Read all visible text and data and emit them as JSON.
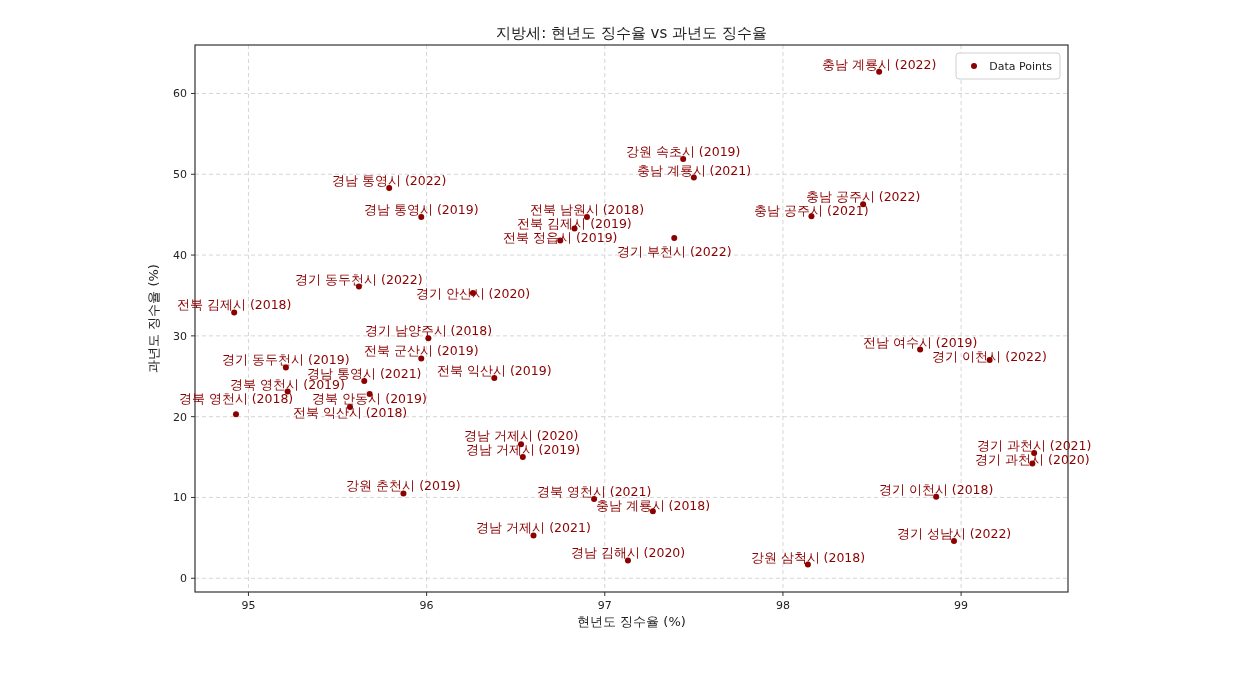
{
  "chart_data": {
    "type": "scatter",
    "title": "지방세: 현년도 징수율 vs 과년도 징수율",
    "xlabel": "현년도 징수율 (%)",
    "ylabel": "과년도 징수율 (%)",
    "xlim": [
      94.7,
      99.6
    ],
    "ylim": [
      -1.7,
      66
    ],
    "xticks": [
      95,
      96,
      97,
      98,
      99
    ],
    "yticks": [
      0,
      10,
      20,
      30,
      40,
      50,
      60
    ],
    "grid": true,
    "legend": "top right",
    "marker": "circle",
    "series": [
      {
        "name": "Data Points",
        "color": "#8b0000",
        "x": [
          98.54,
          95.79,
          95.97,
          95.62,
          94.92,
          96.26,
          96.01,
          95.97,
          95.21,
          95.22,
          95.68,
          95.65,
          95.57,
          94.93,
          95.87,
          96.6,
          96.38,
          96.54,
          96.53,
          97.44,
          97.5,
          98.45,
          98.16,
          96.9,
          96.83,
          96.75,
          97.39,
          98.77,
          99.16,
          99.41,
          99.4,
          98.86,
          98.96,
          98.14,
          97.13,
          96.94,
          97.27
        ],
        "values": [
          62.7,
          48.3,
          44.7,
          36.1,
          32.9,
          35.3,
          29.7,
          27.2,
          26.1,
          23.1,
          22.8,
          24.4,
          21.2,
          20.3,
          10.5,
          5.3,
          24.8,
          15.0,
          16.6,
          51.9,
          49.6,
          46.3,
          44.8,
          44.7,
          43.3,
          41.8,
          42.1,
          28.3,
          27.0,
          15.5,
          14.2,
          10.1,
          4.6,
          1.7,
          2.2,
          9.8,
          8.3
        ]
      }
    ],
    "annotations": [
      {
        "text": "충남 계룡시 (2022)",
        "x": 98.54,
        "y": 62.7
      },
      {
        "text": "경남 통영시 (2022)",
        "x": 95.79,
        "y": 48.3
      },
      {
        "text": "경남 통영시 (2019)",
        "x": 95.97,
        "y": 44.7
      },
      {
        "text": "경기 동두천시 (2022)",
        "x": 95.62,
        "y": 36.1
      },
      {
        "text": "전북 김제시 (2018)",
        "x": 94.92,
        "y": 32.9
      },
      {
        "text": "경기 안산시 (2020)",
        "x": 96.26,
        "y": 35.3
      },
      {
        "text": "경기 남양주시 (2018)",
        "x": 96.01,
        "y": 29.7
      },
      {
        "text": "전북 군산시 (2019)",
        "x": 95.97,
        "y": 27.2
      },
      {
        "text": "경기 동두천시 (2019)",
        "x": 95.21,
        "y": 26.1
      },
      {
        "text": "경북 영천시 (2019)",
        "x": 95.22,
        "y": 23.1
      },
      {
        "text": "경북 안동시 (2019)",
        "x": 95.68,
        "y": 22.8
      },
      {
        "text": "경남 통영시 (2021)",
        "x": 95.65,
        "y": 24.4
      },
      {
        "text": "전북 익산시 (2018)",
        "x": 95.57,
        "y": 21.2
      },
      {
        "text": "경북 영천시 (2018)",
        "x": 94.93,
        "y": 20.3
      },
      {
        "text": "강원 춘천시 (2019)",
        "x": 95.87,
        "y": 10.5
      },
      {
        "text": "경남 거제시 (2021)",
        "x": 96.6,
        "y": 5.3
      },
      {
        "text": "전북 익산시 (2019)",
        "x": 96.38,
        "y": 24.8
      },
      {
        "text": "경남 거제시 (2019)",
        "x": 96.54,
        "y": 15.0
      },
      {
        "text": "경남 거제시 (2020)",
        "x": 96.53,
        "y": 16.6
      },
      {
        "text": "강원 속초시 (2019)",
        "x": 97.44,
        "y": 51.9
      },
      {
        "text": "충남 계룡시 (2021)",
        "x": 97.5,
        "y": 49.6
      },
      {
        "text": "충남 공주시 (2022)",
        "x": 98.45,
        "y": 46.3
      },
      {
        "text": "충남 공주시 (2021)",
        "x": 98.16,
        "y": 44.8
      },
      {
        "text": "전북 남원시 (2018)",
        "x": 96.9,
        "y": 44.7
      },
      {
        "text": "전북 김제시 (2019)",
        "x": 96.83,
        "y": 43.3
      },
      {
        "text": "전북 정읍시 (2019)",
        "x": 96.75,
        "y": 41.8
      },
      {
        "text": "경기 부천시 (2022)",
        "x": 97.39,
        "y": 42.1
      },
      {
        "text": "전남 여수시 (2019)",
        "x": 98.77,
        "y": 28.3
      },
      {
        "text": "경기 이천시 (2022)",
        "x": 99.16,
        "y": 27.0
      },
      {
        "text": "경기 과천시 (2021)",
        "x": 99.41,
        "y": 15.5
      },
      {
        "text": "경기 과천시 (2020)",
        "x": 99.4,
        "y": 14.2
      },
      {
        "text": "경기 이천시 (2018)",
        "x": 98.86,
        "y": 10.1
      },
      {
        "text": "경기 성남시 (2022)",
        "x": 98.96,
        "y": 4.6
      },
      {
        "text": "강원 삼척시 (2018)",
        "x": 98.14,
        "y": 1.7
      },
      {
        "text": "경남 김해시 (2020)",
        "x": 97.13,
        "y": 2.2
      },
      {
        "text": "경북 영천시 (2021)",
        "x": 96.94,
        "y": 9.8
      },
      {
        "text": "충남 계룡시 (2018)",
        "x": 97.27,
        "y": 8.3
      }
    ]
  }
}
